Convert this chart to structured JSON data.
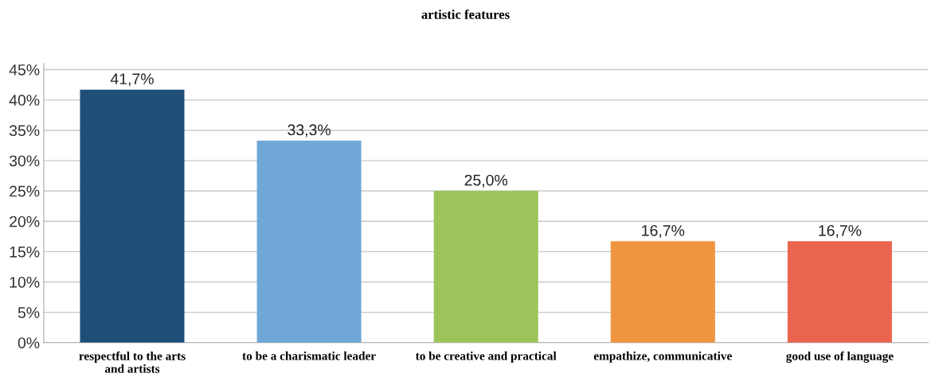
{
  "chart_data": {
    "type": "bar",
    "title": "artistic features",
    "categories": [
      "respectful to the arts\nand artists",
      "to be a charismatic leader",
      "to be creative and practical",
      "empathize, communicative",
      "good use of language"
    ],
    "values": [
      41.7,
      33.3,
      25.0,
      16.7,
      16.7
    ],
    "colors": [
      "#1f4e79",
      "#6fa8d6",
      "#9bc55a",
      "#f0953f",
      "#ea654e"
    ],
    "value_labels": [
      "41,7%",
      "33,3%",
      "25,0%",
      "16,7%",
      "16,7%"
    ],
    "ylim": [
      0,
      46
    ],
    "yticks": [
      {
        "value": 0,
        "label": "0%"
      },
      {
        "value": 5,
        "label": "5%"
      },
      {
        "value": 10,
        "label": "10%"
      },
      {
        "value": 15,
        "label": "15%"
      },
      {
        "value": 20,
        "label": "20%"
      },
      {
        "value": 25,
        "label": "25%"
      },
      {
        "value": 30,
        "label": "30%"
      },
      {
        "value": 35,
        "label": "35%"
      },
      {
        "value": 40,
        "label": "40%"
      },
      {
        "value": 45,
        "label": "45%"
      }
    ],
    "grid": "y",
    "legend": false
  }
}
